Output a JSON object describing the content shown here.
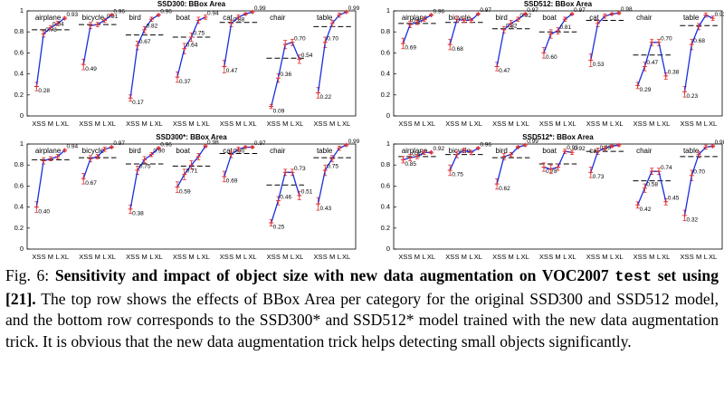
{
  "chart_data": [
    {
      "type": "line",
      "title": "SSD300: BBox Area",
      "ylim": [
        0,
        1
      ],
      "yticks": [
        0,
        0.2,
        0.4,
        0.6,
        0.8,
        1
      ],
      "x_labels": [
        "XS",
        "S",
        "M",
        "L",
        "XL"
      ],
      "groups": [
        {
          "name": "airplane",
          "values": [
            0.28,
            0.78,
            0.84,
            0.88,
            0.93
          ],
          "errors": [
            0.04,
            0.03,
            0.02,
            0.02,
            0.01
          ],
          "value_labels": [
            "0.28",
            "0.78",
            "0.84",
            null,
            "0.93"
          ],
          "average": 0.82
        },
        {
          "name": "bicycle",
          "values": [
            0.49,
            0.86,
            0.87,
            0.91,
            0.96
          ],
          "errors": [
            0.05,
            0.03,
            0.02,
            0.02,
            0.01
          ],
          "value_labels": [
            "0.49",
            null,
            null,
            "0.91",
            "0.96"
          ],
          "average": 0.87
        },
        {
          "name": "bird",
          "values": [
            0.17,
            0.67,
            0.82,
            0.92,
            0.96
          ],
          "errors": [
            0.03,
            0.04,
            0.03,
            0.02,
            0.01
          ],
          "value_labels": [
            "0.17",
            "0.67",
            "0.82",
            null,
            "0.96"
          ],
          "average": 0.77
        },
        {
          "name": "boat",
          "values": [
            0.37,
            0.64,
            0.75,
            0.91,
            0.94
          ],
          "errors": [
            0.05,
            0.05,
            0.04,
            0.03,
            0.02
          ],
          "value_labels": [
            "0.37",
            "0.64",
            "0.75",
            null,
            "0.94"
          ],
          "average": 0.75
        },
        {
          "name": "cat",
          "values": [
            0.47,
            0.88,
            0.94,
            0.97,
            0.99
          ],
          "errors": [
            0.06,
            0.03,
            0.02,
            0.01,
            0.01
          ],
          "value_labels": [
            "0.47",
            "0.88",
            null,
            null,
            "0.99"
          ],
          "average": 0.89
        },
        {
          "name": "chair",
          "values": [
            0.09,
            0.36,
            0.68,
            0.7,
            0.54
          ],
          "errors": [
            0.02,
            0.04,
            0.04,
            0.03,
            0.04
          ],
          "value_labels": [
            "0.09",
            "0.36",
            null,
            "0.70",
            "0.54"
          ],
          "average": 0.55
        },
        {
          "name": "table",
          "values": [
            0.22,
            0.7,
            0.88,
            0.96,
            0.99
          ],
          "errors": [
            0.05,
            0.05,
            0.03,
            0.02,
            0.01
          ],
          "value_labels": [
            "0.22",
            "0.70",
            null,
            null,
            "0.99"
          ],
          "average": 0.85
        }
      ]
    },
    {
      "type": "line",
      "title": "SSD512: BBox Area",
      "ylim": [
        0,
        1
      ],
      "yticks": [
        0,
        0.2,
        0.4,
        0.6,
        0.8,
        1
      ],
      "x_labels": [
        "XS",
        "S",
        "M",
        "L",
        "XL"
      ],
      "groups": [
        {
          "name": "airplane",
          "values": [
            0.69,
            0.87,
            0.89,
            0.92,
            0.96
          ],
          "errors": [
            0.05,
            0.03,
            0.02,
            0.02,
            0.01
          ],
          "value_labels": [
            "0.69",
            "0.87",
            null,
            null,
            "0.96"
          ],
          "average": 0.88
        },
        {
          "name": "bicycle",
          "values": [
            0.68,
            0.92,
            0.91,
            0.91,
            0.97
          ],
          "errors": [
            0.05,
            0.03,
            0.02,
            0.02,
            0.01
          ],
          "value_labels": [
            "0.68",
            null,
            null,
            null,
            "0.97"
          ],
          "average": 0.89
        },
        {
          "name": "bird",
          "values": [
            0.47,
            0.82,
            0.88,
            0.92,
            0.97
          ],
          "errors": [
            0.04,
            0.03,
            0.03,
            0.02,
            0.01
          ],
          "value_labels": [
            "0.47",
            "0.82",
            null,
            "0.92",
            "0.97"
          ],
          "average": 0.83
        },
        {
          "name": "boat",
          "values": [
            0.6,
            0.78,
            0.81,
            0.92,
            0.97
          ],
          "errors": [
            0.05,
            0.04,
            0.03,
            0.02,
            0.01
          ],
          "value_labels": [
            "0.60",
            null,
            "0.81",
            null,
            "0.97"
          ],
          "average": 0.8
        },
        {
          "name": "cat",
          "values": [
            0.53,
            0.88,
            0.95,
            0.97,
            0.98
          ],
          "errors": [
            0.06,
            0.03,
            0.02,
            0.01,
            0.01
          ],
          "value_labels": [
            "0.53",
            null,
            null,
            null,
            "0.98"
          ],
          "average": 0.91
        },
        {
          "name": "chair",
          "values": [
            0.29,
            0.47,
            0.7,
            0.7,
            0.38
          ],
          "errors": [
            0.03,
            0.04,
            0.03,
            0.03,
            0.03
          ],
          "value_labels": [
            "0.29",
            "0.47",
            null,
            "0.70",
            "0.38"
          ],
          "average": 0.58
        },
        {
          "name": "table",
          "values": [
            0.23,
            0.68,
            0.85,
            0.96,
            0.93
          ],
          "errors": [
            0.05,
            0.05,
            0.03,
            0.02,
            0.02
          ],
          "value_labels": [
            "0.23",
            "0.68",
            null,
            null,
            "0.93"
          ],
          "average": 0.86
        }
      ]
    },
    {
      "type": "line",
      "title": "SSD300*: BBox Area",
      "ylim": [
        0,
        1
      ],
      "yticks": [
        0,
        0.2,
        0.4,
        0.6,
        0.8,
        1
      ],
      "x_labels": [
        "XS",
        "S",
        "M",
        "L",
        "XL"
      ],
      "groups": [
        {
          "name": "airplane",
          "values": [
            0.4,
            0.84,
            0.86,
            0.88,
            0.94
          ],
          "errors": [
            0.05,
            0.03,
            0.02,
            0.02,
            0.01
          ],
          "value_labels": [
            "0.40",
            null,
            null,
            null,
            "0.94"
          ],
          "average": 0.85
        },
        {
          "name": "bicycle",
          "values": [
            0.67,
            0.86,
            0.88,
            0.95,
            0.97
          ],
          "errors": [
            0.05,
            0.03,
            0.02,
            0.02,
            0.01
          ],
          "value_labels": [
            "0.67",
            null,
            null,
            null,
            "0.97"
          ],
          "average": 0.87
        },
        {
          "name": "bird",
          "values": [
            0.38,
            0.75,
            0.85,
            0.9,
            0.96
          ],
          "errors": [
            0.04,
            0.04,
            0.03,
            0.02,
            0.01
          ],
          "value_labels": [
            "0.38",
            "0.75",
            null,
            "0.90",
            "0.96"
          ],
          "average": 0.81
        },
        {
          "name": "boat",
          "values": [
            0.59,
            0.71,
            0.8,
            0.88,
            0.98
          ],
          "errors": [
            0.05,
            0.05,
            0.04,
            0.03,
            0.01
          ],
          "value_labels": [
            "0.59",
            "0.71",
            null,
            null,
            "0.98"
          ],
          "average": 0.79
        },
        {
          "name": "cat",
          "values": [
            0.69,
            0.9,
            0.95,
            0.97,
            0.97
          ],
          "errors": [
            0.05,
            0.03,
            0.02,
            0.01,
            0.01
          ],
          "value_labels": [
            "0.69",
            "0.90",
            null,
            null,
            "0.97"
          ],
          "average": 0.91
        },
        {
          "name": "chair",
          "values": [
            0.25,
            0.46,
            0.73,
            0.73,
            0.51
          ],
          "errors": [
            0.03,
            0.04,
            0.03,
            0.03,
            0.04
          ],
          "value_labels": [
            "0.25",
            "0.46",
            null,
            "0.73",
            "0.51"
          ],
          "average": 0.61
        },
        {
          "name": "table",
          "values": [
            0.43,
            0.75,
            0.86,
            0.96,
            0.99
          ],
          "errors": [
            0.06,
            0.05,
            0.03,
            0.02,
            0.01
          ],
          "value_labels": [
            "0.43",
            "0.75",
            null,
            null,
            "0.99"
          ],
          "average": 0.87
        }
      ]
    },
    {
      "type": "line",
      "title": "SSD512*: BBox Area",
      "ylim": [
        0,
        1
      ],
      "yticks": [
        0,
        0.2,
        0.4,
        0.6,
        0.8,
        1
      ],
      "x_labels": [
        "XS",
        "S",
        "M",
        "L",
        "XL"
      ],
      "groups": [
        {
          "name": "airplane",
          "values": [
            0.85,
            0.87,
            0.88,
            0.92,
            0.92
          ],
          "errors": [
            0.03,
            0.03,
            0.02,
            0.02,
            0.01
          ],
          "value_labels": [
            "0.85",
            "0.87",
            null,
            null,
            "0.92"
          ],
          "average": 0.88
        },
        {
          "name": "bicycle",
          "values": [
            0.75,
            0.9,
            0.94,
            0.92,
            0.96
          ],
          "errors": [
            0.05,
            0.03,
            0.02,
            0.02,
            0.01
          ],
          "value_labels": [
            "0.75",
            null,
            null,
            null,
            "0.96"
          ],
          "average": 0.9
        },
        {
          "name": "bird",
          "values": [
            0.62,
            0.88,
            0.9,
            0.97,
            0.99
          ],
          "errors": [
            0.05,
            0.03,
            0.02,
            0.01,
            0.01
          ],
          "value_labels": [
            "0.62",
            null,
            null,
            null,
            "0.99"
          ],
          "average": 0.87
        },
        {
          "name": "boat",
          "values": [
            0.78,
            0.76,
            0.78,
            0.93,
            0.92
          ],
          "errors": [
            0.04,
            0.04,
            0.03,
            0.02,
            0.02
          ],
          "value_labels": [
            "0.78",
            null,
            null,
            "0.93",
            "0.92"
          ],
          "average": 0.81
        },
        {
          "name": "cat",
          "values": [
            0.73,
            0.93,
            0.96,
            0.98,
            0.99
          ],
          "errors": [
            0.05,
            0.03,
            0.02,
            0.01,
            0.01
          ],
          "value_labels": [
            "0.73",
            "0.93",
            null,
            null,
            null
          ],
          "average": 0.93
        },
        {
          "name": "chair",
          "values": [
            0.42,
            0.58,
            0.74,
            0.74,
            0.45
          ],
          "errors": [
            0.03,
            0.04,
            0.03,
            0.03,
            0.03
          ],
          "value_labels": [
            "0.42",
            "0.58",
            null,
            "0.74",
            "0.45"
          ],
          "average": 0.65
        },
        {
          "name": "table",
          "values": [
            0.32,
            0.7,
            0.9,
            0.97,
            0.98
          ],
          "errors": [
            0.05,
            0.05,
            0.03,
            0.02,
            0.01
          ],
          "value_labels": [
            "0.32",
            "0.70",
            null,
            null,
            "0.98"
          ],
          "average": 0.88
        }
      ]
    }
  ],
  "caption": {
    "label": "Fig. 6:",
    "bold": "Sensitivity and impact of object size with new data augmentation on VOC2007",
    "code": "test",
    "bold_end": "set using [21].",
    "text": "The top row shows the effects of BBox Area per category for the original SSD300 and SSD512 model, and the bottom row corresponds to the SSD300* and SSD512* model trained with the new data augmentation trick. It is obvious that the new data augmentation trick helps detecting small objects significantly."
  }
}
